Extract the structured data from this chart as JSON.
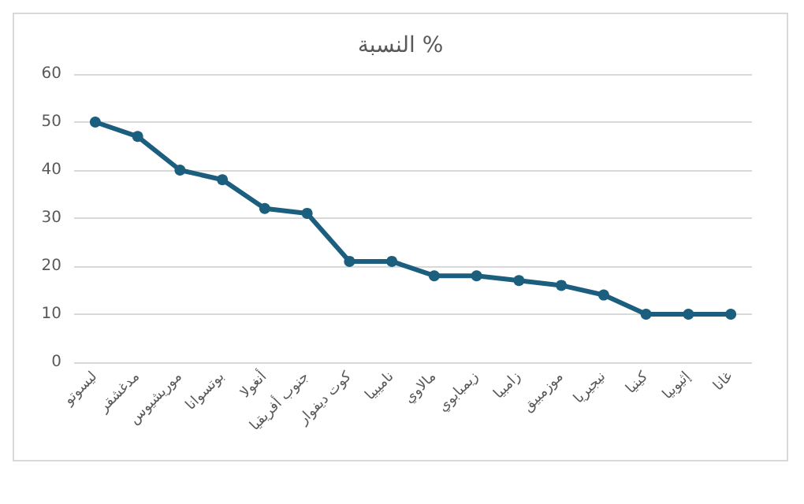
{
  "chart_data": {
    "type": "line",
    "title": "النسبة %",
    "categories": [
      "ليسوتو",
      "مدغشقر",
      "موريشيوس",
      "بوتسوانا",
      "أنغولا",
      "جنوب أفريقيا",
      "كوت ديفوار",
      "ناميبيا",
      "مالاوي",
      "زيمبابوي",
      "زامبيا",
      "موزمبيق",
      "نيجيريا",
      "كينيا",
      "إثيوبيا",
      "غانا"
    ],
    "series": [
      {
        "color": "#1b5e7e",
        "values": [
          50,
          47,
          40,
          38,
          32,
          31,
          21,
          21,
          18,
          18,
          17,
          16,
          14,
          10,
          10,
          10
        ]
      }
    ],
    "ylim": [
      0,
      60
    ],
    "yticks": [
      0,
      10,
      20,
      30,
      40,
      50,
      60
    ],
    "grid": "y",
    "marker": "circle",
    "line_style": "solid"
  }
}
